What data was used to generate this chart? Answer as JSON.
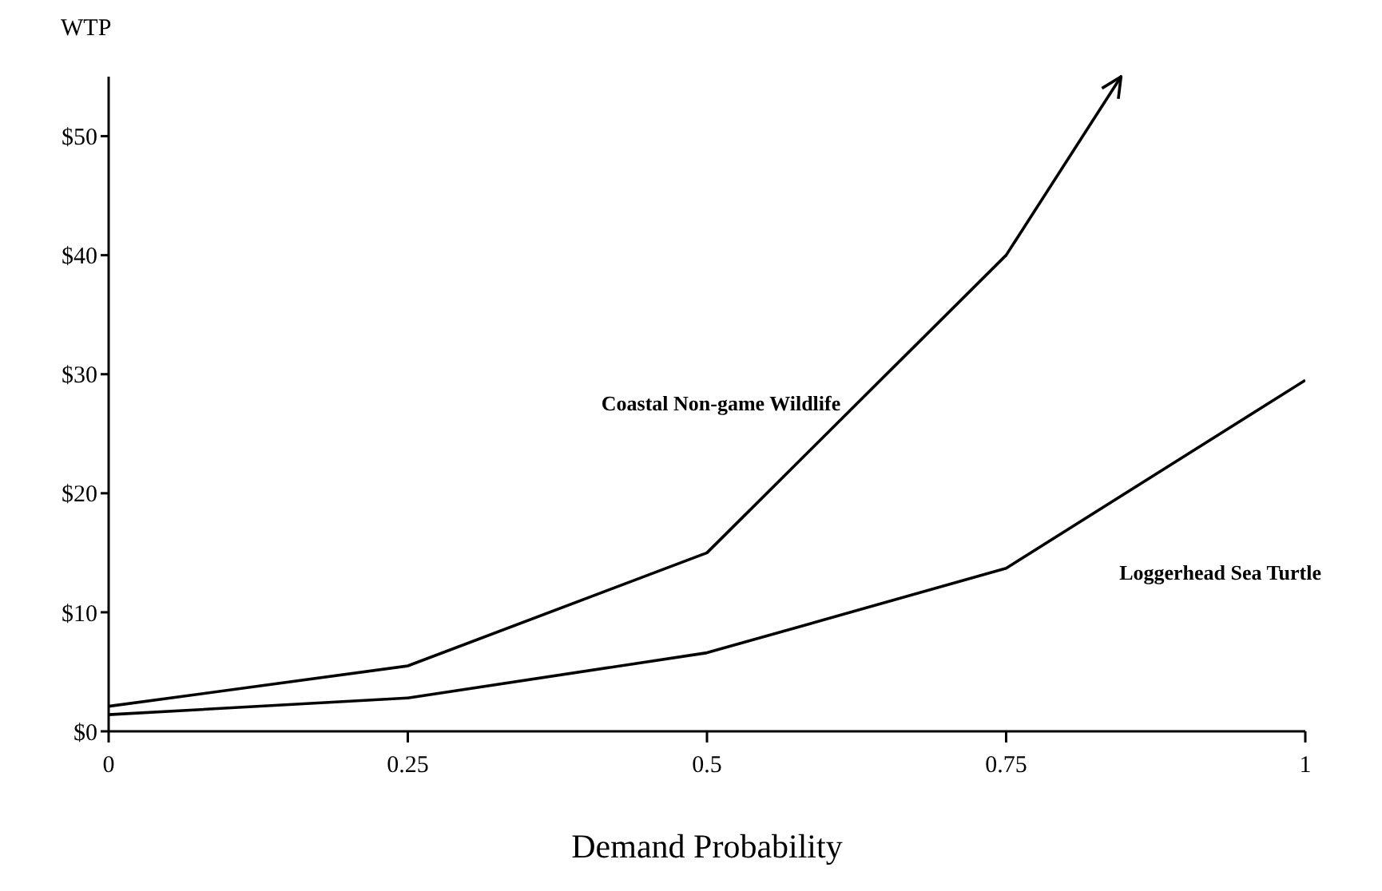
{
  "chart_data": {
    "type": "line",
    "xlabel": "Demand Probability",
    "ylabel": "WTP",
    "series": [
      {
        "name": "Coastal Non-game Wildlife",
        "color": "#000000",
        "x": [
          0,
          0.25,
          0.5,
          0.75,
          0.846
        ],
        "values": [
          2.1,
          5.5,
          15,
          40,
          55
        ]
      },
      {
        "name": "Loggerhead Sea Turtle",
        "color": "#000000",
        "x": [
          0,
          0.25,
          0.5,
          0.75,
          1
        ],
        "values": [
          1.4,
          2.8,
          6.6,
          13.7,
          29.5
        ]
      }
    ],
    "xlim": [
      0,
      1
    ],
    "xticks": [
      0,
      0.25,
      0.5,
      0.75,
      1
    ],
    "ylim": [
      0,
      55
    ],
    "yticks": [
      {
        "value": 0,
        "label": "$0"
      },
      {
        "value": 10,
        "label": "$10"
      },
      {
        "value": 20,
        "label": "$20"
      },
      {
        "value": 30,
        "label": "$30"
      },
      {
        "value": 40,
        "label": "$40"
      },
      {
        "value": 50,
        "label": "$50"
      }
    ],
    "grid": false,
    "legend": false,
    "marker": "none",
    "line_style": "solid"
  }
}
